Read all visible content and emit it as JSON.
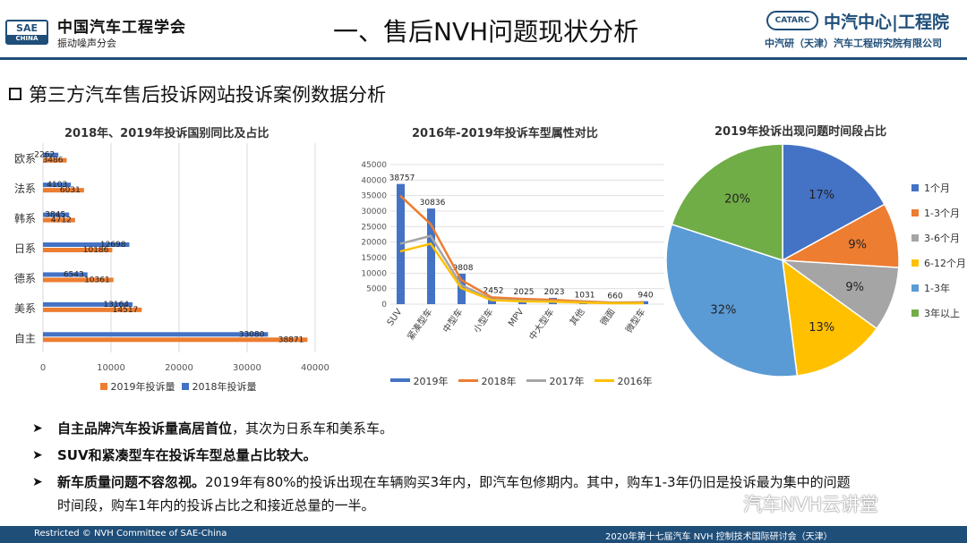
{
  "header": {
    "logo_text": "SAE",
    "logo_sub": "CHINA",
    "org_name": "中国汽车工程学会",
    "org_sub": "振动噪声分会",
    "title": "一、售后NVH问题现状分析",
    "catarc_logo": "CATARC",
    "catarc_name": "中汽中心|工程院",
    "catarc_sub": "中汽研（天津）汽车工程研究院有限公司"
  },
  "section_title": "第三方汽车售后投诉网站投诉案例数据分析",
  "colors": {
    "primary": "#1f4e79",
    "series_2019": "#4472c4",
    "series_2018": "#ed7d31",
    "series_2017": "#a5a5a5",
    "series_2016": "#ffc000",
    "pie_1m": "#4472c4",
    "pie_1_3m": "#ed7d31",
    "pie_3_6m": "#a5a5a5",
    "pie_6_12m": "#ffc000",
    "pie_1_3y": "#5b9bd5",
    "pie_3y_plus": "#70ad47"
  },
  "chart_data": [
    {
      "type": "bar",
      "orientation": "horizontal",
      "title": "2018年、2019年投诉国别同比及占比",
      "categories": [
        "欧系",
        "法系",
        "韩系",
        "日系",
        "德系",
        "美系",
        "自主"
      ],
      "series": [
        {
          "name": "2019年投诉量",
          "values": [
            2262,
            4103,
            3845,
            12698,
            6543,
            13164,
            33080
          ]
        },
        {
          "name": "2018年投诉量",
          "values": [
            3486,
            6031,
            4712,
            10186,
            10361,
            14517,
            38871
          ]
        }
      ],
      "x_ticks": [
        "0",
        "10000",
        "20000",
        "30000",
        "40000"
      ],
      "xlim": [
        0,
        40000
      ],
      "grid": "vertical",
      "legend": "bottom"
    },
    {
      "type": "bar",
      "title": "2016年-2019年投诉车型属性对比",
      "categories": [
        "SUV",
        "紧凑型车",
        "中型车",
        "小型车",
        "MPV",
        "中大型车",
        "其他",
        "微面",
        "微型车"
      ],
      "series": [
        {
          "name": "2019年",
          "chart": "bar",
          "values": [
            38757,
            30836,
            9808,
            2452,
            2025,
            2023,
            1031,
            660,
            940
          ]
        },
        {
          "name": "2018年",
          "chart": "line",
          "values": [
            35000,
            25800,
            7800,
            2200,
            1700,
            1400,
            900,
            500,
            600
          ]
        },
        {
          "name": "2017年",
          "chart": "line",
          "values": [
            19500,
            22000,
            6200,
            1500,
            1100,
            900,
            600,
            400,
            400
          ]
        },
        {
          "name": "2016年",
          "chart": "line",
          "values": [
            17000,
            19500,
            5200,
            1300,
            900,
            800,
            500,
            300,
            300
          ]
        }
      ],
      "data_labels": [
        "38757",
        "30836",
        "9808",
        "2452",
        "2025",
        "2023",
        "1031",
        "660",
        "940"
      ],
      "y_ticks": [
        "0",
        "5000",
        "10000",
        "15000",
        "20000",
        "25000",
        "30000",
        "35000",
        "40000",
        "45000"
      ],
      "ylim": [
        0,
        45000
      ],
      "grid": "horizontal",
      "legend": "bottom"
    },
    {
      "type": "pie",
      "title": "2019年投诉出现问题时间段占比",
      "categories": [
        "1个月",
        "1-3个月",
        "3-6个月",
        "6-12个月",
        "1-3年",
        "3年以上"
      ],
      "values": [
        17,
        9,
        9,
        13,
        32,
        20
      ],
      "labels": [
        "17%",
        "9%",
        "9%",
        "13%",
        "32%",
        "20%"
      ],
      "legend": "right"
    }
  ],
  "bullets": [
    {
      "bold": "自主品牌汽车投诉量高居首位",
      "text": "，其次为日系车和美系车。"
    },
    {
      "bold": "SUV和紧凑型车在投诉车型总量占比较大。",
      "text": ""
    },
    {
      "bold": "新车质量问题不容忽视。",
      "text": "2019年有80%的投诉出现在车辆购买3年内，即汽车包修期内。其中，购车1-3年仍旧是投诉最为集中的问题",
      "cont": "时间段，购车1年内的投诉占比之和接近总量的一半。"
    }
  ],
  "watermark": "汽车NVH云讲堂",
  "footer": {
    "left": "Restricted © NVH Committee of SAE-China",
    "right": "2020年第十七届汽车 NVH 控制技术国际研讨会（天津）"
  }
}
